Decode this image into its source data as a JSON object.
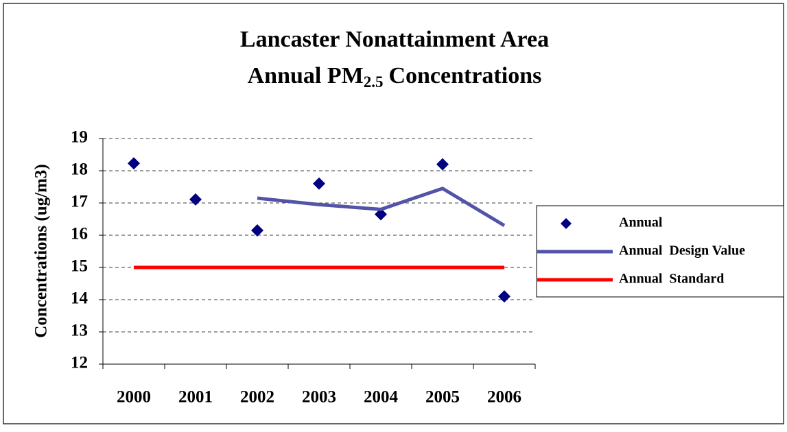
{
  "chart_data": {
    "type": "line",
    "title": "Lancaster Nonattainment Area",
    "subtitle": [
      "Annual PM",
      "2.5",
      "Concentrations"
    ],
    "y_label": "Concentrations (ug/m3)",
    "categories": [
      "2000",
      "2001",
      "2002",
      "2003",
      "2004",
      "2005",
      "2006"
    ],
    "series": [
      {
        "name": "Annual",
        "color": "#000080",
        "marker": "diamond",
        "values": [
          18.23,
          17.11,
          16.15,
          17.6,
          16.65,
          18.2,
          14.1
        ]
      },
      {
        "name": "Annual  Design Value",
        "color": "#5353a8",
        "values": [
          null,
          null,
          17.15,
          16.95,
          16.8,
          17.45,
          16.3
        ]
      },
      {
        "name": "Annual  Standard",
        "color": "#ff0000",
        "values": [
          15,
          15,
          15,
          15,
          15,
          15,
          15
        ]
      }
    ],
    "ylim": [
      12,
      19
    ],
    "yticks": [
      12,
      13,
      14,
      15,
      16,
      17,
      18,
      19
    ],
    "grid": true,
    "legend": "right"
  }
}
